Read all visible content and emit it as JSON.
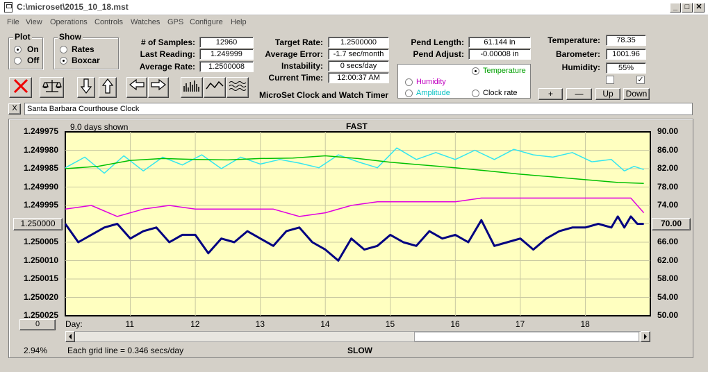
{
  "window": {
    "title": "C:\\microset\\2015_10_18.mst",
    "min": "_",
    "max": "□",
    "close": "✕"
  },
  "menu": [
    "File",
    "View",
    "Operations",
    "Controls",
    "Watches",
    "GPS",
    "Configure",
    "Help"
  ],
  "plot_group": {
    "title": "Plot",
    "options": [
      "On",
      "Off"
    ],
    "selected": "On"
  },
  "show_group": {
    "title": "Show",
    "options": [
      "Rates",
      "Boxcar"
    ],
    "selected": "Boxcar"
  },
  "stats": {
    "samples_label": "# of Samples:",
    "samples": "12960",
    "last_label": "Last Reading:",
    "last": "1.249999",
    "avg_label": "Average Rate:",
    "avg": "1.2500008",
    "target_label": "Target Rate:",
    "target": "1.2500000",
    "avgerr_label": "Average Error:",
    "avgerr": "-1.7 sec/month",
    "instab_label": "Instability:",
    "instab": "0 secs/day",
    "time_label": "Current Time:",
    "time": "12:00:37 AM",
    "app_name": "MicroSet Clock and Watch Timer",
    "pendlen_label": "Pend Length:",
    "pendlen": "61.144 in",
    "pendadj_label": "Pend Adjust:",
    "pendadj": "-0.00008 in",
    "temp_label": "Temperature:",
    "temp": "78.35",
    "baro_label": "Barometer:",
    "baro": "1001.96",
    "hum_label": "Humidity:",
    "hum": "55%"
  },
  "aux_group": {
    "options": [
      {
        "label": "Temperature",
        "color": "#00a000"
      },
      {
        "label": "Humidity",
        "color": "#c000c0"
      },
      {
        "label": "Amplitude",
        "color": "#00c0c0"
      },
      {
        "label": "Clock rate",
        "color": "#000000"
      }
    ],
    "selected": "Temperature"
  },
  "scale_buttons": {
    "plus": "+",
    "minus": "—",
    "up": "Up",
    "down": "Down"
  },
  "clock_name": "Santa Barbara Courthouse Clock",
  "clock_close": "X",
  "chart": {
    "top_left_note": "9.0 days shown",
    "top_label": "FAST",
    "bottom_label": "SLOW",
    "left_button": "1.250000",
    "right_button": "70.00",
    "corner_button": "0",
    "percent": "2.94%",
    "grid_note": "Each grid line = 0.346 secs/day",
    "day_label": "Day:",
    "bg": "#ffffc0"
  },
  "chart_data": {
    "type": "line",
    "left_axis_ticks": [
      "1.249975",
      "1.249980",
      "1.249985",
      "1.249990",
      "1.249995",
      "1.250000",
      "1.250005",
      "1.250010",
      "1.250015",
      "1.250020",
      "1.250025"
    ],
    "right_axis_ticks": [
      "90.00",
      "86.00",
      "82.00",
      "78.00",
      "74.00",
      "70.00",
      "66.00",
      "62.00",
      "58.00",
      "54.00",
      "50.00"
    ],
    "x_ticks": [
      "11",
      "12",
      "13",
      "14",
      "15",
      "16",
      "17",
      "18"
    ],
    "ylim_left": [
      1.250025,
      1.249975
    ],
    "ylim_right": [
      50,
      90
    ],
    "xlim": [
      10.0,
      19.0
    ],
    "series": [
      {
        "name": "Amplitude",
        "color": "#33e6f0",
        "x": [
          10.0,
          10.3,
          10.6,
          10.9,
          11.2,
          11.5,
          11.8,
          12.1,
          12.4,
          12.7,
          13.0,
          13.3,
          13.6,
          13.9,
          14.2,
          14.5,
          14.8,
          15.1,
          15.4,
          15.7,
          16.0,
          16.3,
          16.6,
          16.9,
          17.2,
          17.5,
          17.8,
          18.1,
          18.4,
          18.6,
          18.75,
          18.9
        ],
        "y": [
          82.2,
          84.5,
          81.0,
          84.8,
          81.5,
          84.5,
          82.8,
          85.0,
          82.0,
          84.5,
          83.0,
          84.0,
          83.2,
          82.2,
          85.0,
          83.5,
          82.2,
          86.5,
          84.0,
          85.5,
          84.0,
          86.0,
          84.0,
          86.2,
          85.0,
          84.5,
          85.5,
          83.5,
          84.0,
          81.5,
          82.5,
          81.8
        ]
      },
      {
        "name": "Temperature",
        "color": "#00c000",
        "x": [
          10.0,
          10.5,
          11.0,
          11.5,
          12.0,
          12.5,
          13.0,
          13.5,
          14.0,
          14.5,
          15.0,
          15.5,
          16.0,
          16.5,
          17.0,
          17.5,
          18.0,
          18.5,
          18.9
        ],
        "y": [
          82.0,
          82.5,
          83.8,
          84.2,
          84.0,
          83.9,
          84.2,
          84.3,
          84.8,
          84.2,
          83.4,
          82.8,
          82.2,
          81.5,
          80.8,
          80.2,
          79.6,
          79.0,
          78.8
        ]
      },
      {
        "name": "Humidity",
        "color": "#e000e0",
        "x": [
          10.0,
          10.4,
          10.8,
          11.2,
          11.6,
          12.0,
          12.4,
          12.8,
          13.2,
          13.6,
          14.0,
          14.4,
          14.8,
          15.2,
          15.6,
          16.0,
          16.4,
          16.8,
          17.2,
          17.6,
          18.0,
          18.4,
          18.7,
          18.9
        ],
        "y": [
          1.249996,
          1.249995,
          1.249998,
          1.249996,
          1.249995,
          1.249996,
          1.249996,
          1.249996,
          1.249996,
          1.249998,
          1.249997,
          1.249995,
          1.249994,
          1.249994,
          1.249994,
          1.249994,
          1.249993,
          1.249993,
          1.249993,
          1.249993,
          1.249993,
          1.249993,
          1.249993,
          1.249997
        ]
      },
      {
        "name": "Clock rate",
        "color": "#000080",
        "x": [
          10.0,
          10.2,
          10.4,
          10.6,
          10.8,
          11.0,
          11.2,
          11.4,
          11.6,
          11.8,
          12.0,
          12.2,
          12.4,
          12.6,
          12.8,
          13.0,
          13.2,
          13.4,
          13.6,
          13.8,
          14.0,
          14.2,
          14.4,
          14.6,
          14.8,
          15.0,
          15.2,
          15.4,
          15.6,
          15.8,
          16.0,
          16.2,
          16.4,
          16.6,
          16.8,
          17.0,
          17.2,
          17.4,
          17.6,
          17.8,
          18.0,
          18.2,
          18.4,
          18.5,
          18.6,
          18.7,
          18.8,
          18.9
        ],
        "y": [
          1.25,
          1.250005,
          1.250003,
          1.250001,
          1.25,
          1.250004,
          1.250002,
          1.250001,
          1.250005,
          1.250003,
          1.250003,
          1.250008,
          1.250004,
          1.250005,
          1.250002,
          1.250004,
          1.250006,
          1.250002,
          1.250001,
          1.250005,
          1.250007,
          1.25001,
          1.250004,
          1.250007,
          1.250006,
          1.250003,
          1.250005,
          1.250006,
          1.250002,
          1.250004,
          1.250003,
          1.250005,
          1.249999,
          1.250006,
          1.250005,
          1.250004,
          1.250007,
          1.250004,
          1.250002,
          1.250001,
          1.250001,
          1.25,
          1.250001,
          1.249998,
          1.250001,
          1.249998,
          1.25,
          1.25
        ]
      }
    ]
  }
}
